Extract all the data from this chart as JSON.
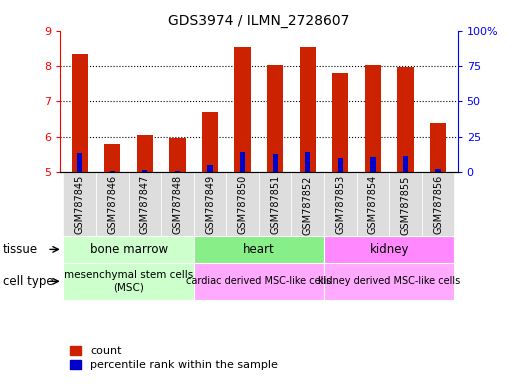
{
  "title": "GDS3974 / ILMN_2728607",
  "samples": [
    "GSM787845",
    "GSM787846",
    "GSM787847",
    "GSM787848",
    "GSM787849",
    "GSM787850",
    "GSM787851",
    "GSM787852",
    "GSM787853",
    "GSM787854",
    "GSM787855",
    "GSM787856"
  ],
  "red_values": [
    8.35,
    5.8,
    6.05,
    5.97,
    6.7,
    8.55,
    8.02,
    8.55,
    7.8,
    8.02,
    7.97,
    6.38
  ],
  "blue_values": [
    5.55,
    5.03,
    5.05,
    5.02,
    5.2,
    5.56,
    5.5,
    5.57,
    5.4,
    5.43,
    5.44,
    5.08
  ],
  "ylim": [
    5.0,
    9.0
  ],
  "y2lim": [
    0,
    100
  ],
  "yticks": [
    5,
    6,
    7,
    8,
    9
  ],
  "y2ticks": [
    0,
    25,
    50,
    75,
    100
  ],
  "tissue_groups": [
    {
      "label": "bone marrow",
      "start": 0,
      "end": 4,
      "color": "#ccffcc"
    },
    {
      "label": "heart",
      "start": 4,
      "end": 8,
      "color": "#88ee88"
    },
    {
      "label": "kidney",
      "start": 8,
      "end": 12,
      "color": "#ff88ff"
    }
  ],
  "cell_type_groups": [
    {
      "label": "mesenchymal stem cells\n(MSC)",
      "start": 0,
      "end": 4,
      "color": "#ccffcc"
    },
    {
      "label": "cardiac derived MSC-like cells",
      "start": 4,
      "end": 8,
      "color": "#ffaaff"
    },
    {
      "label": "kidney derived MSC-like cells",
      "start": 8,
      "end": 12,
      "color": "#ffaaff"
    }
  ],
  "bar_color_red": "#cc2200",
  "bar_color_blue": "#0000cc",
  "bar_width": 0.5,
  "background_color": "#ffffff",
  "label_tissue": "tissue",
  "label_celltype": "cell type",
  "legend_count": "count",
  "legend_percentile": "percentile rank within the sample",
  "sample_label_bg": "#dddddd"
}
